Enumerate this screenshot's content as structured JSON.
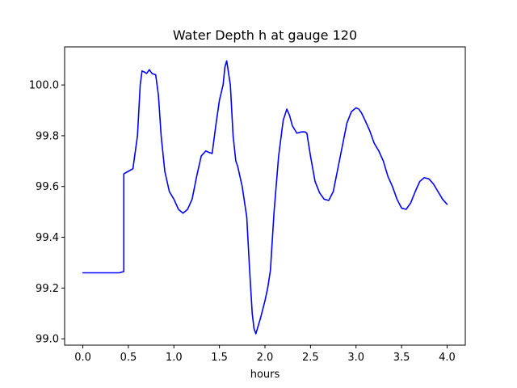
{
  "chart_data": {
    "type": "line",
    "title": "Water Depth h at gauge 120",
    "xlabel": "hours",
    "ylabel": "",
    "xlim": [
      -0.2,
      4.2
    ],
    "ylim": [
      98.975,
      100.15
    ],
    "xticks": [
      0.0,
      0.5,
      1.0,
      1.5,
      2.0,
      2.5,
      3.0,
      3.5,
      4.0
    ],
    "xtick_labels": [
      "0.0",
      "0.5",
      "1.0",
      "1.5",
      "2.0",
      "2.5",
      "3.0",
      "3.5",
      "4.0"
    ],
    "yticks": [
      99.0,
      99.2,
      99.4,
      99.6,
      99.8,
      100.0
    ],
    "ytick_labels": [
      "99.0",
      "99.2",
      "99.4",
      "99.6",
      "99.8",
      "100.0"
    ],
    "grid": false,
    "series": [
      {
        "color": "#0000ff",
        "x": [
          0.0,
          0.1,
          0.2,
          0.3,
          0.4,
          0.45,
          0.45,
          0.5,
          0.55,
          0.6,
          0.63,
          0.65,
          0.68,
          0.7,
          0.73,
          0.76,
          0.8,
          0.83,
          0.86,
          0.9,
          0.95,
          1.0,
          1.05,
          1.1,
          1.15,
          1.2,
          1.25,
          1.3,
          1.35,
          1.38,
          1.42,
          1.46,
          1.5,
          1.54,
          1.56,
          1.58,
          1.62,
          1.65,
          1.68,
          1.7,
          1.75,
          1.8,
          1.83,
          1.86,
          1.88,
          1.9,
          1.95,
          2.0,
          2.03,
          2.06,
          2.1,
          2.15,
          2.2,
          2.24,
          2.27,
          2.3,
          2.35,
          2.4,
          2.44,
          2.46,
          2.5,
          2.55,
          2.6,
          2.65,
          2.7,
          2.75,
          2.8,
          2.85,
          2.9,
          2.95,
          3.0,
          3.03,
          3.06,
          3.1,
          3.15,
          3.2,
          3.25,
          3.3,
          3.35,
          3.4,
          3.45,
          3.5,
          3.55,
          3.6,
          3.65,
          3.7,
          3.75,
          3.8,
          3.85,
          3.9,
          3.95,
          4.0
        ],
        "y": [
          99.26,
          99.26,
          99.26,
          99.26,
          99.26,
          99.265,
          99.65,
          99.66,
          99.67,
          99.8,
          100.0,
          100.055,
          100.05,
          100.045,
          100.06,
          100.045,
          100.04,
          99.96,
          99.8,
          99.66,
          99.58,
          99.55,
          99.51,
          99.495,
          99.51,
          99.55,
          99.64,
          99.72,
          99.74,
          99.735,
          99.73,
          99.84,
          99.94,
          100.0,
          100.07,
          100.095,
          100.0,
          99.8,
          99.7,
          99.68,
          99.6,
          99.48,
          99.28,
          99.1,
          99.04,
          99.02,
          99.08,
          99.15,
          99.2,
          99.27,
          99.5,
          99.72,
          99.86,
          99.905,
          99.88,
          99.84,
          99.81,
          99.815,
          99.815,
          99.81,
          99.72,
          99.62,
          99.575,
          99.55,
          99.545,
          99.58,
          99.67,
          99.76,
          99.85,
          99.895,
          99.91,
          99.905,
          99.89,
          99.86,
          99.82,
          99.77,
          99.74,
          99.7,
          99.64,
          99.6,
          99.55,
          99.515,
          99.51,
          99.535,
          99.58,
          99.62,
          99.635,
          99.63,
          99.61,
          99.58,
          99.55,
          99.53
        ]
      }
    ]
  }
}
